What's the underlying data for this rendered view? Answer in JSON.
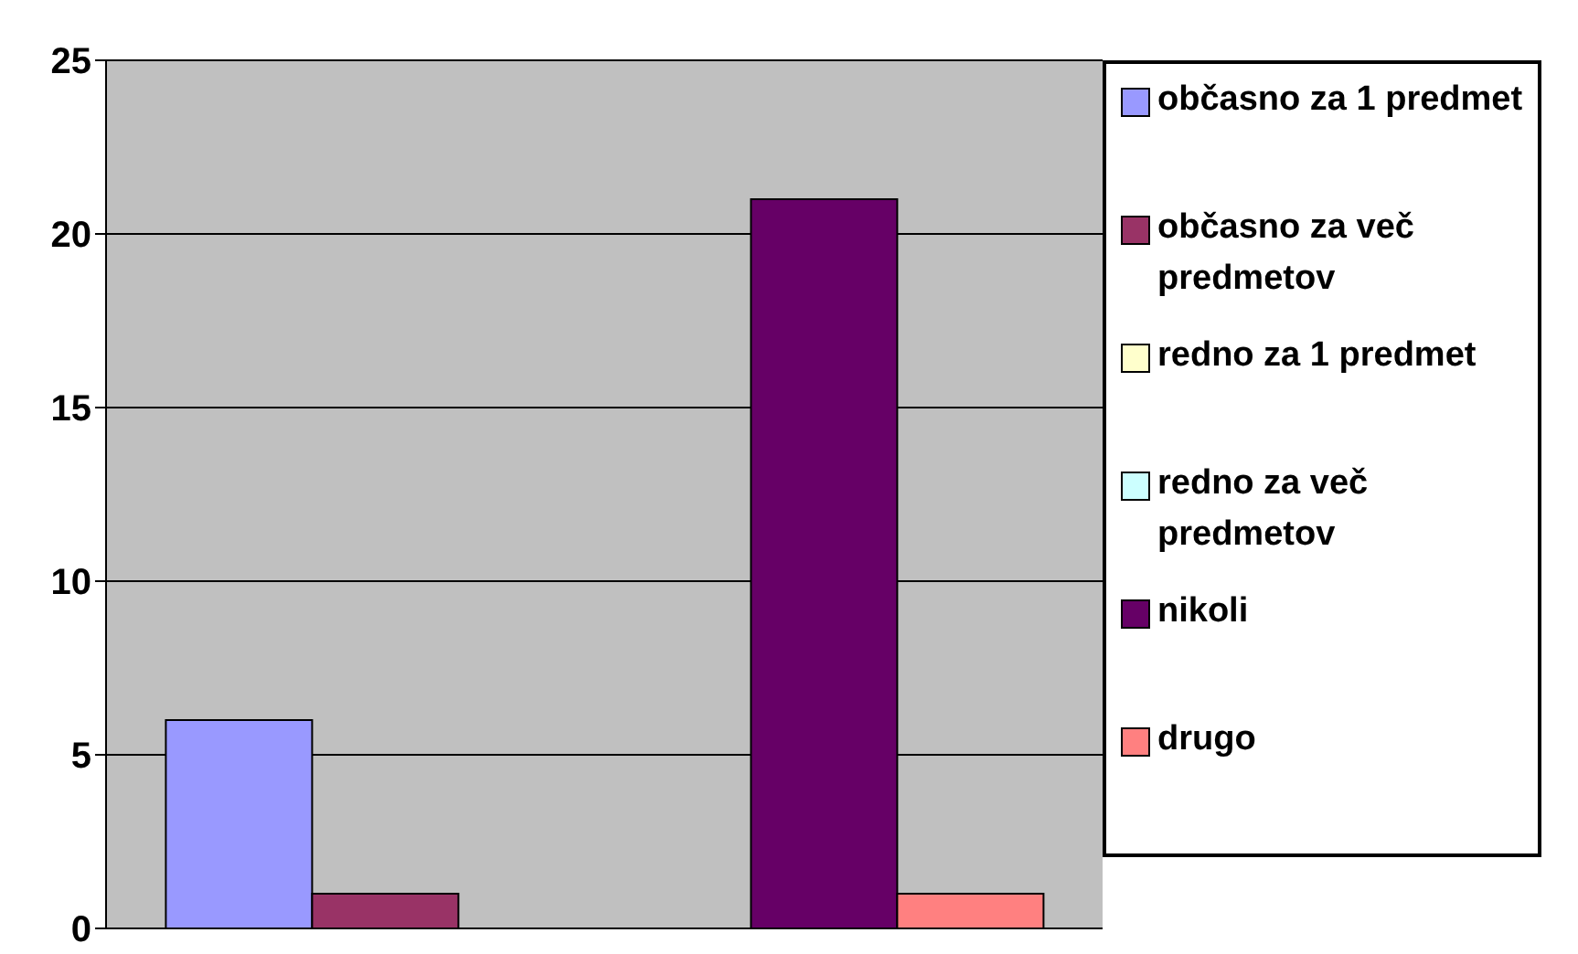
{
  "chart_data": {
    "type": "bar",
    "categories": [
      null
    ],
    "series": [
      {
        "name": "občasno za 1 predmet",
        "color": "#9999ff",
        "values": [
          6
        ]
      },
      {
        "name": "občasno za več predmetov",
        "color": "#993366",
        "values": [
          1
        ]
      },
      {
        "name": "redno za 1 predmet",
        "color": "#ffffcc",
        "values": [
          0
        ]
      },
      {
        "name": "redno za več predmetov",
        "color": "#ccffff",
        "values": [
          0
        ]
      },
      {
        "name": "nikoli",
        "color": "#660066",
        "values": [
          21
        ]
      },
      {
        "name": "drugo",
        "color": "#ff8080",
        "values": [
          1
        ]
      }
    ],
    "ylim": [
      0,
      25
    ],
    "yticks": [
      0,
      5,
      10,
      15,
      20,
      25
    ],
    "grid": "y",
    "legend": "right"
  }
}
